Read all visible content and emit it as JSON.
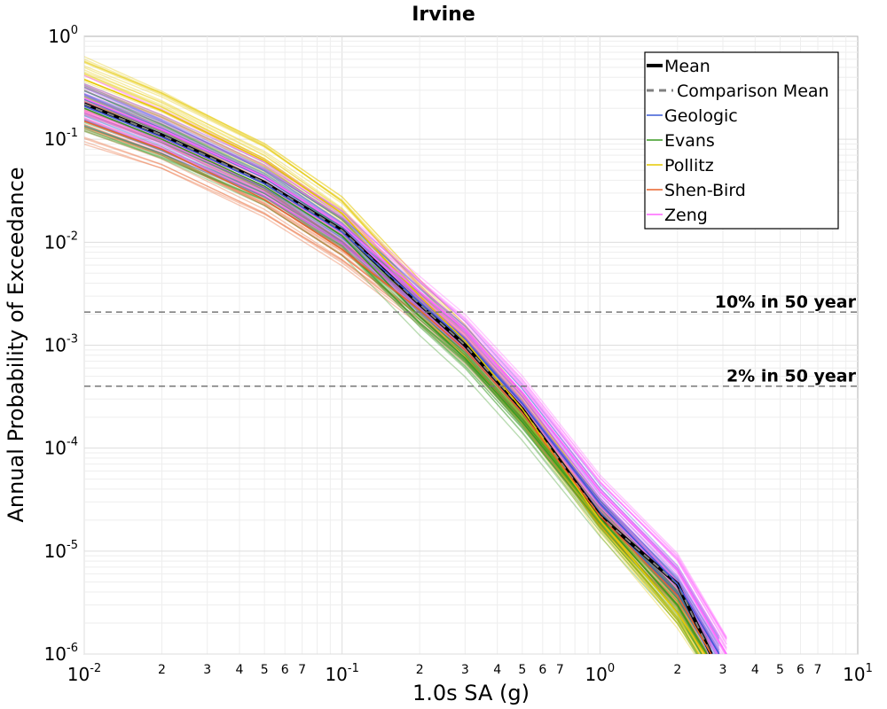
{
  "chart_data": {
    "type": "line",
    "title": "Irvine",
    "xlabel": "1.0s SA (g)",
    "ylabel": "Annual Probability of Exceedance",
    "xscale": "log",
    "yscale": "log",
    "xlim": [
      0.01,
      10
    ],
    "ylim": [
      1e-06,
      1
    ],
    "grid": true,
    "legend_position": "top-right",
    "x_ticks_major": [
      {
        "base": "10",
        "exp": "-2",
        "value": 0.01
      },
      {
        "base": "10",
        "exp": "-1",
        "value": 0.1
      },
      {
        "base": "10",
        "exp": "0",
        "value": 1
      },
      {
        "base": "10",
        "exp": "1",
        "value": 10
      }
    ],
    "x_ticks_minor_labels": [
      "2",
      "3",
      "4",
      "5",
      "6",
      "7"
    ],
    "y_ticks_major": [
      {
        "base": "10",
        "exp": "0",
        "value": 1
      },
      {
        "base": "10",
        "exp": "-1",
        "value": 0.1
      },
      {
        "base": "10",
        "exp": "-2",
        "value": 0.01
      },
      {
        "base": "10",
        "exp": "-3",
        "value": 0.001
      },
      {
        "base": "10",
        "exp": "-4",
        "value": 0.0001
      },
      {
        "base": "10",
        "exp": "-5",
        "value": 1e-05
      },
      {
        "base": "10",
        "exp": "-6",
        "value": 1e-06
      }
    ],
    "reference_lines": [
      {
        "label": "10% in 50 year",
        "y": 0.0021
      },
      {
        "label": "2% in 50 year",
        "y": 0.0004
      }
    ],
    "series": [
      {
        "name": "Mean",
        "color": "#000000",
        "style": "solid",
        "x": [
          0.01,
          0.02,
          0.05,
          0.1,
          0.2,
          0.3,
          0.5,
          1,
          2,
          2.7
        ],
        "y": [
          0.22,
          0.11,
          0.038,
          0.013,
          0.0025,
          0.001,
          0.00024,
          2.2e-05,
          4.8e-06,
          1e-06
        ]
      },
      {
        "name": "Comparison Mean",
        "color": "#808080",
        "style": "dashed",
        "x": [
          0.01,
          0.02,
          0.05,
          0.1,
          0.2,
          0.3,
          0.5,
          1,
          2,
          2.7
        ],
        "y": [
          0.22,
          0.11,
          0.038,
          0.013,
          0.0025,
          0.001,
          0.00024,
          2.2e-05,
          4.8e-06,
          1e-06
        ]
      },
      {
        "name": "Geologic",
        "color": "#3b5bd6",
        "style": "solid",
        "x": [
          0.01,
          0.02,
          0.05,
          0.1,
          0.2,
          0.3,
          0.5,
          1,
          2,
          2.9
        ],
        "y": [
          0.21,
          0.105,
          0.037,
          0.0125,
          0.0026,
          0.0011,
          0.00027,
          2.9e-05,
          4.8e-06,
          1e-06
        ]
      },
      {
        "name": "Evans",
        "color": "#3a9a22",
        "style": "solid",
        "x": [
          0.01,
          0.02,
          0.05,
          0.1,
          0.2,
          0.3,
          0.5,
          1,
          2,
          2.6
        ],
        "y": [
          0.2,
          0.1,
          0.035,
          0.0115,
          0.0019,
          0.00075,
          0.00018,
          2.1e-05,
          3e-06,
          1e-06
        ]
      },
      {
        "name": "Pollitz",
        "color": "#e6c800",
        "style": "solid",
        "x": [
          0.01,
          0.02,
          0.05,
          0.1,
          0.2,
          0.3,
          0.5,
          1,
          2,
          2.55
        ],
        "y": [
          0.38,
          0.19,
          0.062,
          0.019,
          0.003,
          0.0011,
          0.00024,
          2e-05,
          2.5e-06,
          1e-06
        ]
      },
      {
        "name": "Shen-Bird",
        "color": "#e8622a",
        "style": "solid",
        "x": [
          0.01,
          0.02,
          0.05,
          0.1,
          0.2,
          0.3,
          0.5,
          1,
          2,
          2.7
        ],
        "y": [
          0.15,
          0.08,
          0.026,
          0.0085,
          0.0022,
          0.0009,
          0.00022,
          2.2e-05,
          3.7e-06,
          1e-06
        ]
      },
      {
        "name": "Zeng",
        "color": "#ff66ff",
        "style": "solid",
        "x": [
          0.01,
          0.02,
          0.05,
          0.1,
          0.2,
          0.3,
          0.5,
          1,
          2,
          3.1
        ],
        "y": [
          0.25,
          0.125,
          0.043,
          0.0145,
          0.0033,
          0.0014,
          0.00035,
          3.8e-05,
          6.5e-06,
          1e-06
        ]
      }
    ]
  }
}
